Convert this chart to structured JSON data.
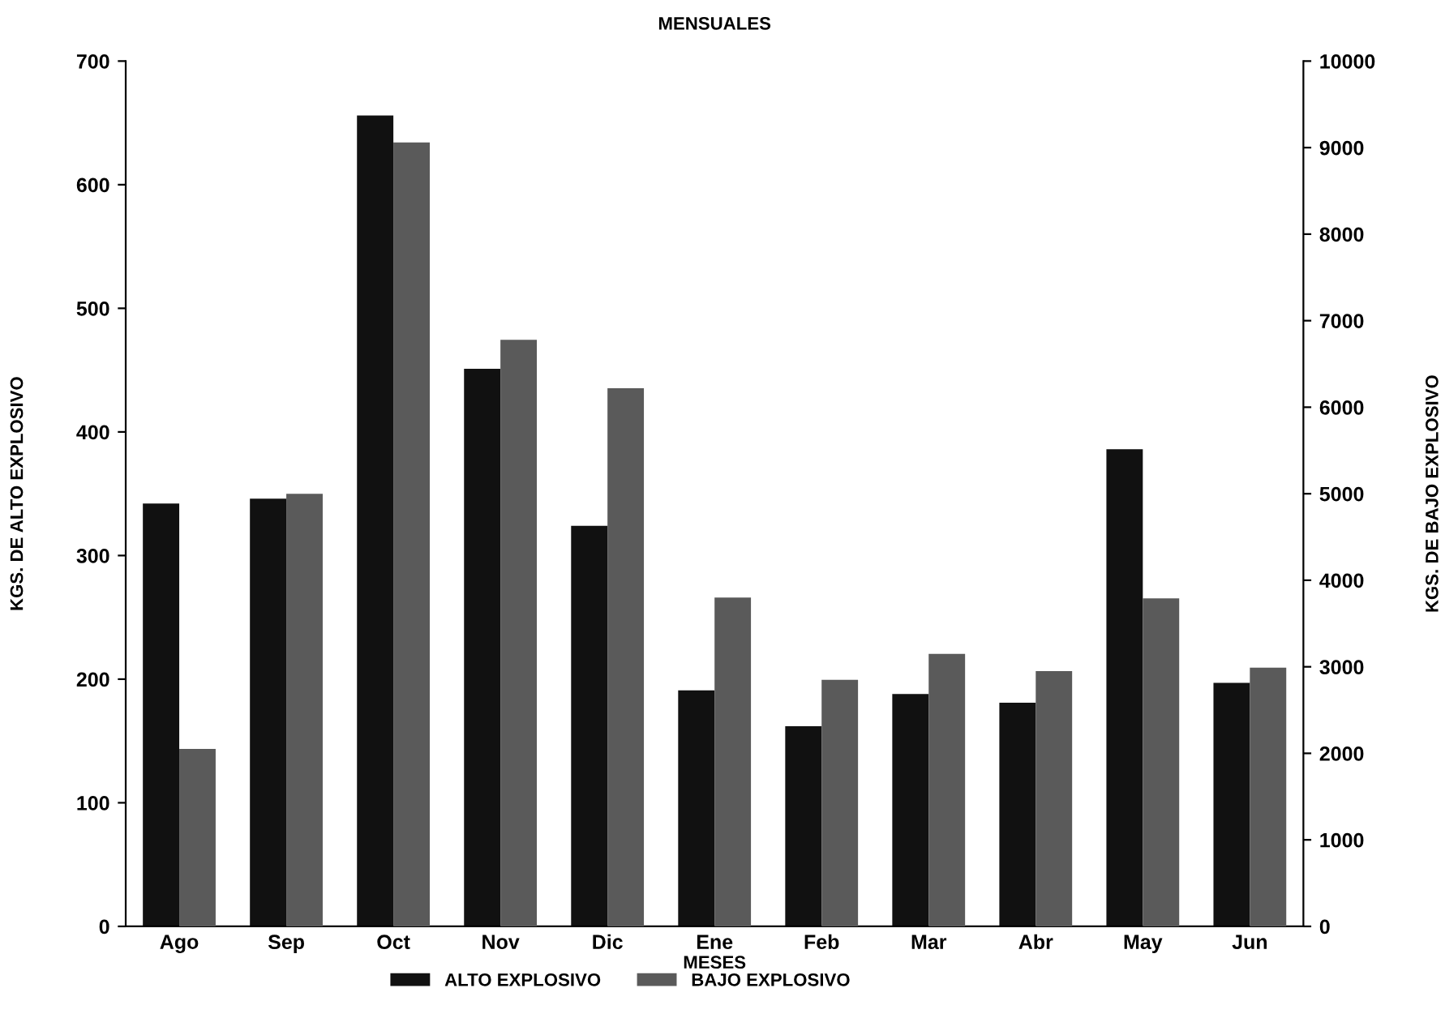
{
  "chart_data": {
    "type": "bar",
    "title": "MENSUALES",
    "xlabel": "MESES",
    "ylabel": "KGS. DE ALTO EXPLOSIVO",
    "y2label": "KGS. DE BAJO EXPLOSIVO",
    "categories": [
      "Ago",
      "Sep",
      "Oct",
      "Nov",
      "Dic",
      "Ene",
      "Feb",
      "Mar",
      "Abr",
      "May",
      "Jun"
    ],
    "series": [
      {
        "name": "ALTO EXPLOSIVO",
        "color": "#111111",
        "values": [
          342,
          346,
          656,
          451,
          324,
          191,
          162,
          188,
          181,
          386,
          197
        ]
      },
      {
        "name": "BAJO EXPLOSIVO",
        "color": "#5a5a5a",
        "axis": "y2",
        "values": [
          2050,
          5000,
          9060,
          6780,
          6220,
          3800,
          2850,
          3150,
          2950,
          3790,
          2990
        ]
      }
    ],
    "ylim": [
      0,
      700
    ],
    "yticks": [
      0,
      100,
      200,
      300,
      400,
      500,
      600,
      700
    ],
    "y2lim": [
      0,
      10000
    ],
    "y2ticks": [
      0,
      1000,
      2000,
      3000,
      4000,
      5000,
      6000,
      7000,
      8000,
      9000,
      10000
    ],
    "grid": false,
    "legend": "bottom"
  }
}
